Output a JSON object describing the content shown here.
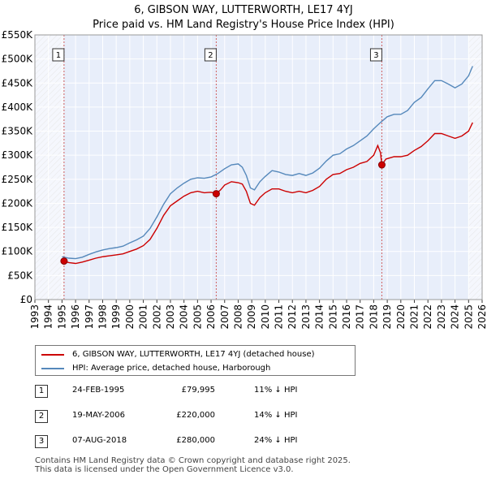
{
  "chart_data": {
    "type": "line",
    "title": "6, GIBSON WAY, LUTTERWORTH, LE17 4YJ",
    "subtitle": "Price paid vs. HM Land Registry's House Price Index (HPI)",
    "xlim": [
      1993,
      2026
    ],
    "ylim": [
      0,
      550000
    ],
    "x_ticks": [
      1993,
      1994,
      1995,
      1996,
      1997,
      1998,
      1999,
      2000,
      2001,
      2002,
      2003,
      2004,
      2005,
      2006,
      2007,
      2008,
      2009,
      2010,
      2011,
      2012,
      2013,
      2014,
      2015,
      2016,
      2017,
      2018,
      2019,
      2020,
      2021,
      2022,
      2023,
      2024,
      2025,
      2026
    ],
    "y_ticks": [
      {
        "value": 0,
        "label": "£0"
      },
      {
        "value": 50000,
        "label": "£50K"
      },
      {
        "value": 100000,
        "label": "£100K"
      },
      {
        "value": 150000,
        "label": "£150K"
      },
      {
        "value": 200000,
        "label": "£200K"
      },
      {
        "value": 250000,
        "label": "£250K"
      },
      {
        "value": 300000,
        "label": "£300K"
      },
      {
        "value": 350000,
        "label": "£350K"
      },
      {
        "value": 400000,
        "label": "£400K"
      },
      {
        "value": 450000,
        "label": "£450K"
      },
      {
        "value": 500000,
        "label": "£500K"
      },
      {
        "value": 550000,
        "label": "£550K"
      }
    ],
    "hatch_before": 1995.15,
    "hatch_after": 2025.0,
    "series": [
      {
        "name": "6, GIBSON WAY, LUTTERWORTH, LE17 4YJ (detached house)",
        "color": "#cc0000",
        "points": [
          [
            1995.15,
            79995
          ],
          [
            1995.5,
            77000
          ],
          [
            1996,
            75000
          ],
          [
            1996.5,
            78000
          ],
          [
            1997,
            82000
          ],
          [
            1997.5,
            86000
          ],
          [
            1998,
            89000
          ],
          [
            1998.5,
            91000
          ],
          [
            1999,
            93000
          ],
          [
            1999.5,
            95000
          ],
          [
            2000,
            100000
          ],
          [
            2000.5,
            105000
          ],
          [
            2001,
            112000
          ],
          [
            2001.5,
            125000
          ],
          [
            2002,
            148000
          ],
          [
            2002.5,
            175000
          ],
          [
            2003,
            195000
          ],
          [
            2003.5,
            205000
          ],
          [
            2004,
            215000
          ],
          [
            2004.5,
            222000
          ],
          [
            2005,
            225000
          ],
          [
            2005.5,
            222000
          ],
          [
            2006,
            223000
          ],
          [
            2006.38,
            220000
          ],
          [
            2006.7,
            228000
          ],
          [
            2007,
            238000
          ],
          [
            2007.5,
            245000
          ],
          [
            2008,
            243000
          ],
          [
            2008.3,
            240000
          ],
          [
            2008.6,
            225000
          ],
          [
            2008.9,
            200000
          ],
          [
            2009.2,
            196000
          ],
          [
            2009.6,
            212000
          ],
          [
            2010,
            222000
          ],
          [
            2010.5,
            230000
          ],
          [
            2011,
            230000
          ],
          [
            2011.5,
            225000
          ],
          [
            2012,
            222000
          ],
          [
            2012.5,
            225000
          ],
          [
            2013,
            222000
          ],
          [
            2013.5,
            227000
          ],
          [
            2014,
            235000
          ],
          [
            2014.5,
            250000
          ],
          [
            2015,
            260000
          ],
          [
            2015.5,
            262000
          ],
          [
            2016,
            270000
          ],
          [
            2016.5,
            275000
          ],
          [
            2017,
            283000
          ],
          [
            2017.5,
            287000
          ],
          [
            2018,
            300000
          ],
          [
            2018.3,
            320000
          ],
          [
            2018.5,
            305000
          ],
          [
            2018.6,
            280000
          ],
          [
            2018.9,
            292000
          ],
          [
            2019.5,
            297000
          ],
          [
            2020,
            297000
          ],
          [
            2020.5,
            300000
          ],
          [
            2021,
            310000
          ],
          [
            2021.5,
            318000
          ],
          [
            2022,
            330000
          ],
          [
            2022.5,
            345000
          ],
          [
            2023,
            345000
          ],
          [
            2023.5,
            340000
          ],
          [
            2024,
            335000
          ],
          [
            2024.5,
            340000
          ],
          [
            2025,
            350000
          ],
          [
            2025.3,
            368000
          ]
        ]
      },
      {
        "name": "HPI: Average price, detached house, Harborough",
        "color": "#5588bb",
        "points": [
          [
            1995,
            89000
          ],
          [
            1995.5,
            86000
          ],
          [
            1996,
            85000
          ],
          [
            1996.5,
            88000
          ],
          [
            1997,
            94000
          ],
          [
            1997.5,
            99000
          ],
          [
            1998,
            103000
          ],
          [
            1998.5,
            106000
          ],
          [
            1999,
            108000
          ],
          [
            1999.5,
            111000
          ],
          [
            2000,
            118000
          ],
          [
            2000.5,
            124000
          ],
          [
            2001,
            132000
          ],
          [
            2001.5,
            148000
          ],
          [
            2002,
            172000
          ],
          [
            2002.5,
            198000
          ],
          [
            2003,
            220000
          ],
          [
            2003.5,
            232000
          ],
          [
            2004,
            242000
          ],
          [
            2004.5,
            250000
          ],
          [
            2005,
            253000
          ],
          [
            2005.5,
            252000
          ],
          [
            2006,
            255000
          ],
          [
            2006.5,
            262000
          ],
          [
            2007,
            272000
          ],
          [
            2007.5,
            280000
          ],
          [
            2008,
            282000
          ],
          [
            2008.3,
            275000
          ],
          [
            2008.6,
            258000
          ],
          [
            2008.9,
            232000
          ],
          [
            2009.2,
            228000
          ],
          [
            2009.6,
            245000
          ],
          [
            2010,
            256000
          ],
          [
            2010.5,
            268000
          ],
          [
            2011,
            265000
          ],
          [
            2011.5,
            260000
          ],
          [
            2012,
            258000
          ],
          [
            2012.5,
            262000
          ],
          [
            2013,
            258000
          ],
          [
            2013.5,
            263000
          ],
          [
            2014,
            273000
          ],
          [
            2014.5,
            288000
          ],
          [
            2015,
            300000
          ],
          [
            2015.5,
            303000
          ],
          [
            2016,
            313000
          ],
          [
            2016.5,
            320000
          ],
          [
            2017,
            330000
          ],
          [
            2017.5,
            340000
          ],
          [
            2018,
            355000
          ],
          [
            2018.5,
            368000
          ],
          [
            2019,
            380000
          ],
          [
            2019.5,
            385000
          ],
          [
            2020,
            385000
          ],
          [
            2020.5,
            393000
          ],
          [
            2021,
            410000
          ],
          [
            2021.5,
            420000
          ],
          [
            2022,
            438000
          ],
          [
            2022.5,
            455000
          ],
          [
            2023,
            455000
          ],
          [
            2023.5,
            448000
          ],
          [
            2024,
            440000
          ],
          [
            2024.5,
            448000
          ],
          [
            2025,
            465000
          ],
          [
            2025.3,
            485000
          ]
        ]
      }
    ],
    "sales": [
      {
        "marker": "1",
        "x": 1995.15,
        "y": 79995,
        "date": "24-FEB-1995",
        "price": "£79,995",
        "hpi": "11% ↓ HPI"
      },
      {
        "marker": "2",
        "x": 2006.38,
        "y": 220000,
        "date": "19-MAY-2006",
        "price": "£220,000",
        "hpi": "14% ↓ HPI"
      },
      {
        "marker": "3",
        "x": 2018.6,
        "y": 280000,
        "date": "07-AUG-2018",
        "price": "£280,000",
        "hpi": "24% ↓ HPI"
      }
    ]
  },
  "legend": {
    "property_label": "6, GIBSON WAY, LUTTERWORTH, LE17 4YJ (detached house)",
    "hpi_label": "HPI: Average price, detached house, Harborough",
    "property_color": "#cc0000",
    "hpi_color": "#5588bb"
  },
  "footer": {
    "line1": "Contains HM Land Registry data © Crown copyright and database right 2025.",
    "line2": "This data is licensed under the Open Government Licence v3.0."
  }
}
